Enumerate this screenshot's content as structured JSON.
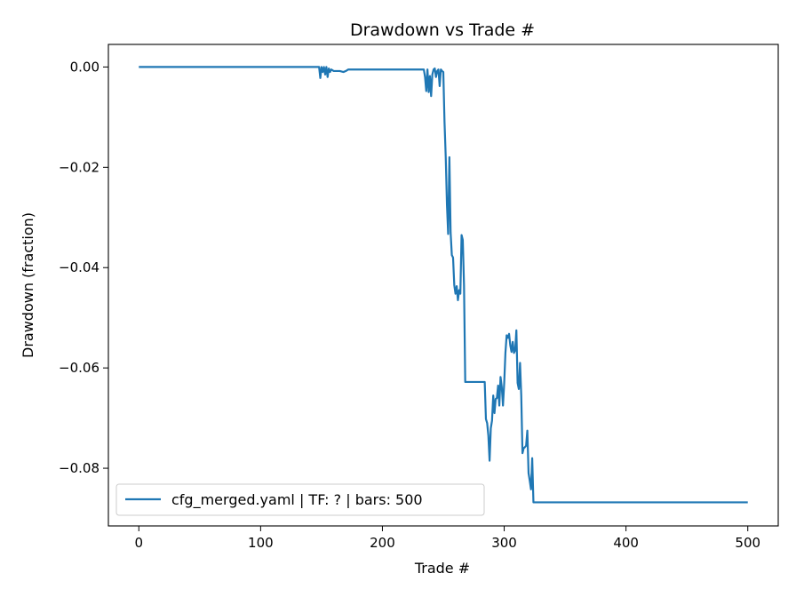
{
  "chart_data": {
    "type": "line",
    "title": "Drawdown vs Trade #",
    "xlabel": "Trade #",
    "ylabel": "Drawdown (fraction)",
    "xlim": [
      -25,
      525
    ],
    "ylim": [
      -0.0915,
      0.0045
    ],
    "xticks": [
      0,
      100,
      200,
      300,
      400,
      500
    ],
    "xtick_labels": [
      "0",
      "100",
      "200",
      "300",
      "400",
      "500"
    ],
    "yticks": [
      0.0,
      -0.02,
      -0.04,
      -0.06,
      -0.08
    ],
    "ytick_labels": [
      "0.00",
      "−0.02",
      "−0.04",
      "−0.06",
      "−0.08"
    ],
    "grid": false,
    "legend_position": "lower-left",
    "series": [
      {
        "name": "cfg_merged.yaml | TF: ? | bars: 500",
        "color": "#1f77b4",
        "points": [
          [
            0,
            0
          ],
          [
            148,
            0
          ],
          [
            149,
            -0.0022
          ],
          [
            150,
            0
          ],
          [
            151,
            -0.001
          ],
          [
            152,
            0
          ],
          [
            153,
            -0.0015
          ],
          [
            154,
            0
          ],
          [
            155,
            -0.002
          ],
          [
            156,
            -0.0003
          ],
          [
            157,
            -0.001
          ],
          [
            158,
            -0.0005
          ],
          [
            160,
            -0.0008
          ],
          [
            165,
            -0.0008
          ],
          [
            168,
            -0.001
          ],
          [
            170,
            -0.0008
          ],
          [
            172,
            -0.0005
          ],
          [
            180,
            -0.0005
          ],
          [
            200,
            -0.0005
          ],
          [
            230,
            -0.0005
          ],
          [
            234,
            -0.0005
          ],
          [
            235,
            -0.002
          ],
          [
            236,
            -0.0048
          ],
          [
            237,
            -0.0005
          ],
          [
            238,
            -0.005
          ],
          [
            239,
            -0.0018
          ],
          [
            240,
            -0.0058
          ],
          [
            241,
            -0.0015
          ],
          [
            242,
            -0.0005
          ],
          [
            243,
            -0.0003
          ],
          [
            244,
            -0.002
          ],
          [
            245,
            -0.0008
          ],
          [
            246,
            -0.0005
          ],
          [
            247,
            -0.0038
          ],
          [
            248,
            -0.0005
          ],
          [
            249,
            -0.0008
          ],
          [
            250,
            -0.001
          ],
          [
            251,
            -0.011
          ],
          [
            252,
            -0.018
          ],
          [
            253,
            -0.0275
          ],
          [
            254,
            -0.0333
          ],
          [
            255,
            -0.018
          ],
          [
            256,
            -0.033
          ],
          [
            257,
            -0.0375
          ],
          [
            258,
            -0.038
          ],
          [
            259,
            -0.0435
          ],
          [
            260,
            -0.0452
          ],
          [
            261,
            -0.0437
          ],
          [
            262,
            -0.0465
          ],
          [
            263,
            -0.0445
          ],
          [
            264,
            -0.0452
          ],
          [
            265,
            -0.0335
          ],
          [
            266,
            -0.0345
          ],
          [
            267,
            -0.0435
          ],
          [
            268,
            -0.0628
          ],
          [
            280,
            -0.0628
          ],
          [
            284,
            -0.0628
          ],
          [
            285,
            -0.0702
          ],
          [
            286,
            -0.071
          ],
          [
            287,
            -0.0735
          ],
          [
            288,
            -0.0785
          ],
          [
            289,
            -0.072
          ],
          [
            290,
            -0.0705
          ],
          [
            291,
            -0.0655
          ],
          [
            292,
            -0.069
          ],
          [
            293,
            -0.0662
          ],
          [
            294,
            -0.066
          ],
          [
            295,
            -0.0635
          ],
          [
            296,
            -0.0675
          ],
          [
            297,
            -0.0618
          ],
          [
            298,
            -0.0638
          ],
          [
            299,
            -0.0675
          ],
          [
            300,
            -0.063
          ],
          [
            301,
            -0.057
          ],
          [
            302,
            -0.0535
          ],
          [
            303,
            -0.054
          ],
          [
            304,
            -0.0532
          ],
          [
            305,
            -0.0555
          ],
          [
            306,
            -0.0568
          ],
          [
            307,
            -0.0548
          ],
          [
            308,
            -0.057
          ],
          [
            309,
            -0.0565
          ],
          [
            310,
            -0.0525
          ],
          [
            311,
            -0.063
          ],
          [
            312,
            -0.0642
          ],
          [
            313,
            -0.059
          ],
          [
            314,
            -0.0655
          ],
          [
            315,
            -0.077
          ],
          [
            316,
            -0.076
          ],
          [
            317,
            -0.0758
          ],
          [
            318,
            -0.0755
          ],
          [
            319,
            -0.0725
          ],
          [
            320,
            -0.081
          ],
          [
            321,
            -0.0825
          ],
          [
            322,
            -0.0842
          ],
          [
            323,
            -0.078
          ],
          [
            324,
            -0.0868
          ],
          [
            400,
            -0.0868
          ],
          [
            500,
            -0.0868
          ]
        ]
      }
    ]
  }
}
